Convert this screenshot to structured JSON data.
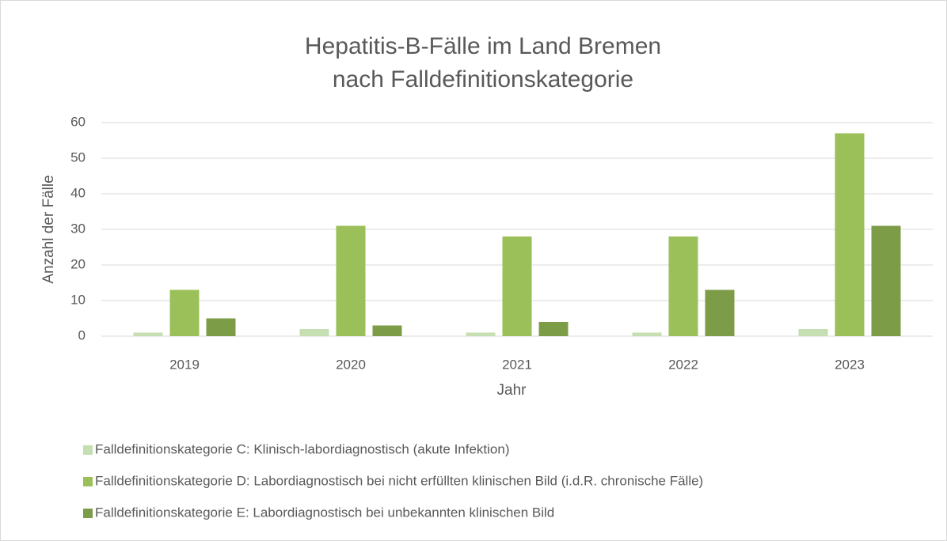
{
  "chart_data": {
    "type": "bar",
    "title": [
      "Hepatitis-B-Fälle im Land Bremen",
      "nach Falldefinitionskategorie"
    ],
    "x_label": "Jahr",
    "y_label": "Anzahl der Fälle",
    "categories": [
      "2019",
      "2020",
      "2021",
      "2022",
      "2023"
    ],
    "series": [
      {
        "name": "Falldefinitionskategorie C: Klinisch-labordiagnostisch (akute Infektion)",
        "color": "#c5dfb3",
        "values": [
          1,
          2,
          1,
          1,
          2
        ]
      },
      {
        "name": "Falldefinitionskategorie D: Labordiagnostisch bei nicht erfüllten klinischen Bild (i.d.R. chronische Fälle)",
        "color": "#9bbf59",
        "values": [
          13,
          31,
          28,
          28,
          57
        ]
      },
      {
        "name": "Falldefinitionskategorie E: Labordiagnostisch bei unbekannten klinischen Bild",
        "color": "#7d9c47",
        "values": [
          5,
          3,
          4,
          13,
          31
        ]
      }
    ],
    "ylim": [
      0,
      60
    ],
    "yticks": [
      0,
      10,
      20,
      30,
      40,
      50,
      60
    ],
    "grid": true,
    "legend": "bottom"
  }
}
